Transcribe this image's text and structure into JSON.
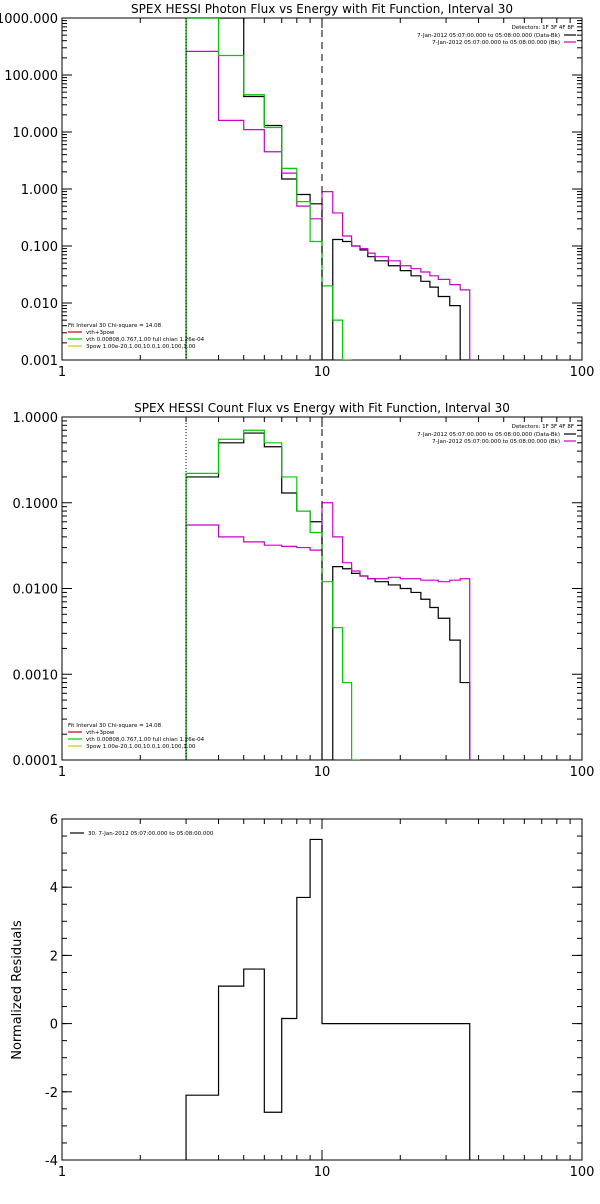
{
  "chart_data": [
    {
      "type": "line",
      "title": "SPEX HESSI Photon Flux vs Energy with Fit Function, Interval 30",
      "xscale": "log",
      "yscale": "log",
      "xlim": [
        1,
        100
      ],
      "ylim": [
        0.001,
        1000
      ],
      "x_ticks": [
        1,
        10,
        100
      ],
      "x_tick_labels": [
        "1",
        "10",
        "100"
      ],
      "y_ticks": [
        0.001,
        0.01,
        0.1,
        1,
        10,
        100,
        1000
      ],
      "y_tick_labels": [
        "0.001",
        "0.010",
        "0.100",
        "1.000",
        "10.000",
        "100.000",
        "1000.000"
      ],
      "vlines": [
        {
          "x": 3,
          "style": "dotted"
        },
        {
          "x": 10,
          "style": "dashed"
        }
      ],
      "legend_topright": {
        "header": "Detectors: 1F 3F 4F 8F",
        "entries": [
          {
            "text": "7-Jan-2012 05:07:00.000 to 05:08:00.000 (Data-Bk)",
            "color": "#000000"
          },
          {
            "text": "7-Jan-2012 05:07:00.000 to 05:08:00.000 (Bk)",
            "color": "#cc00cc"
          }
        ]
      },
      "legend_bottomleft": {
        "header": "Fit Interval 30   Chi-square = 14.08",
        "entries": [
          {
            "text": "vth+3pow",
            "color": "#cc0000"
          },
          {
            "text": "vth 0.00808,0.767,1.00   full chian 1.26e-04",
            "color": "#00cc00"
          },
          {
            "text": "3pow 1.00e-20,1.00,10.0,1.00,100,1.00",
            "color": "#cccc00"
          }
        ]
      },
      "series": [
        {
          "color": "#000000",
          "style": "step",
          "edges": [
            3,
            4,
            5,
            6,
            7,
            8,
            9,
            10,
            11,
            12,
            13,
            14,
            15,
            16,
            18,
            20,
            22,
            24,
            26,
            28,
            31,
            34,
            37
          ],
          "values": [
            1000,
            1000,
            42,
            13,
            1.5,
            0.8,
            0.55,
            0.001,
            0.13,
            0.12,
            0.1,
            0.085,
            0.065,
            0.055,
            0.045,
            0.037,
            0.03,
            0.024,
            0.019,
            0.013,
            0.009,
            0.001
          ]
        },
        {
          "color": "#cc00cc",
          "style": "step",
          "edges": [
            3,
            4,
            5,
            6,
            7,
            8,
            9,
            10,
            11,
            12,
            13,
            14,
            15,
            16,
            18,
            20,
            22,
            24,
            26,
            28,
            31,
            34,
            37
          ],
          "values": [
            260,
            16,
            11,
            4.5,
            1.9,
            0.5,
            0.3,
            0.9,
            0.38,
            0.15,
            0.1,
            0.09,
            0.075,
            0.065,
            0.055,
            0.045,
            0.04,
            0.035,
            0.03,
            0.026,
            0.021,
            0.017
          ]
        },
        {
          "color": "#00cc00",
          "style": "step",
          "edges": [
            3,
            4,
            5,
            6,
            7,
            8,
            9,
            10,
            11,
            12,
            13
          ],
          "values": [
            1000,
            220,
            45,
            12,
            2.3,
            0.6,
            0.12,
            0.02,
            0.005,
            0.0009
          ]
        }
      ]
    },
    {
      "type": "line",
      "title": "SPEX HESSI Count Flux vs Energy with Fit Function, Interval 30",
      "xscale": "log",
      "yscale": "log",
      "xlim": [
        1,
        100
      ],
      "ylim": [
        0.0001,
        1
      ],
      "x_ticks": [
        1,
        10,
        100
      ],
      "x_tick_labels": [
        "1",
        "10",
        "100"
      ],
      "y_ticks": [
        0.0001,
        0.001,
        0.01,
        0.1,
        1
      ],
      "y_tick_labels": [
        "0.0001",
        "0.0010",
        "0.0100",
        "0.1000",
        "1.0000"
      ],
      "vlines": [
        {
          "x": 3,
          "style": "dotted"
        },
        {
          "x": 10,
          "style": "dashed"
        }
      ],
      "legend_topright": {
        "header": "Detectors: 1F 3F 4F 8F",
        "entries": [
          {
            "text": "7-Jan-2012 05:07:00.000 to 05:08:00.000 (Data-Bk)",
            "color": "#000000"
          },
          {
            "text": "7-Jan-2012 05:07:00.000 to 05:08:00.000 (Bk)",
            "color": "#cc00cc"
          }
        ]
      },
      "legend_bottomleft": {
        "header": "Fit Interval 30   Chi-square = 14.08",
        "entries": [
          {
            "text": "vth+3pow",
            "color": "#cc0000"
          },
          {
            "text": "vth 0.00808,0.767,1.00   full chian 1.26e-04",
            "color": "#00cc00"
          },
          {
            "text": "3pow 1.00e-20,1.00,10.0,1.00,100,1.00",
            "color": "#cccc00"
          }
        ]
      },
      "series": [
        {
          "color": "#000000",
          "style": "step",
          "edges": [
            3,
            4,
            5,
            6,
            7,
            8,
            9,
            10,
            11,
            12,
            13,
            14,
            15,
            16,
            18,
            20,
            22,
            24,
            26,
            28,
            31,
            34,
            37
          ],
          "values": [
            0.2,
            0.5,
            0.65,
            0.45,
            0.13,
            0.08,
            0.06,
            0.0001,
            0.018,
            0.017,
            0.015,
            0.014,
            0.013,
            0.012,
            0.011,
            0.01,
            0.009,
            0.0075,
            0.006,
            0.0045,
            0.0025,
            0.0008
          ]
        },
        {
          "color": "#cc00cc",
          "style": "step",
          "edges": [
            3,
            4,
            5,
            6,
            7,
            8,
            9,
            10,
            11,
            12,
            13,
            14,
            15,
            16,
            18,
            20,
            22,
            24,
            26,
            28,
            31,
            34,
            37
          ],
          "values": [
            0.055,
            0.04,
            0.035,
            0.032,
            0.031,
            0.03,
            0.028,
            0.1,
            0.04,
            0.02,
            0.016,
            0.014,
            0.013,
            0.013,
            0.0135,
            0.013,
            0.013,
            0.0125,
            0.0125,
            0.012,
            0.0125,
            0.013
          ]
        },
        {
          "color": "#00cc00",
          "style": "step",
          "edges": [
            3,
            4,
            5,
            6,
            7,
            8,
            9,
            10,
            11,
            12,
            13,
            14
          ],
          "values": [
            0.22,
            0.55,
            0.7,
            0.5,
            0.2,
            0.08,
            0.045,
            0.012,
            0.0035,
            0.0008,
            0.0001
          ]
        }
      ]
    },
    {
      "type": "line",
      "title": "",
      "ylabel": "Normalized Residuals",
      "xscale": "log",
      "yscale": "linear",
      "xlim": [
        1,
        100
      ],
      "ylim": [
        -4,
        6
      ],
      "x_ticks": [
        1,
        10,
        100
      ],
      "x_tick_labels": [
        "1",
        "10",
        "100"
      ],
      "y_ticks": [
        -4,
        -2,
        0,
        2,
        4,
        6
      ],
      "y_tick_labels": [
        "-4",
        "-2",
        "0",
        "2",
        "4",
        "6"
      ],
      "legend": {
        "entries": [
          {
            "text": "30.  7-Jan-2012 05:07:00.000 to 05:08:00.000",
            "color": "#000000"
          }
        ]
      },
      "series": [
        {
          "color": "#000000",
          "style": "step",
          "edges": [
            3,
            4,
            5,
            6,
            7,
            8,
            9,
            10,
            11,
            12,
            13,
            14,
            15,
            16,
            18,
            20,
            22,
            24,
            26,
            28,
            31,
            34,
            37
          ],
          "values": [
            -2.1,
            1.1,
            1.6,
            -2.6,
            0.15,
            3.7,
            5.4,
            0,
            0,
            0,
            0,
            0,
            0,
            0,
            0,
            0,
            0,
            0,
            0,
            0,
            0,
            0
          ]
        }
      ]
    }
  ]
}
